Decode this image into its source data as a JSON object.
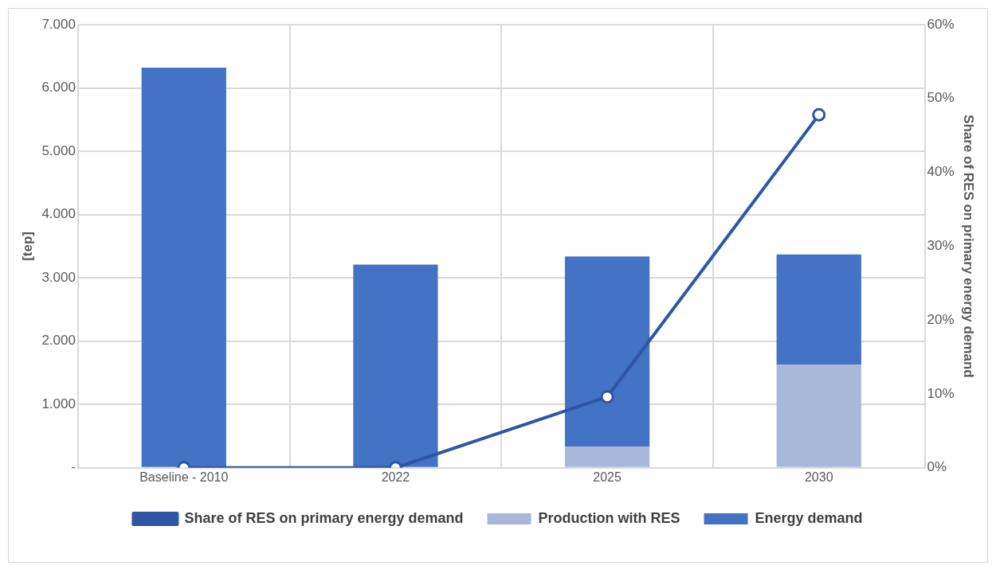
{
  "chart_data": {
    "type": "bar",
    "stacked": true,
    "ylabel": "[tep]",
    "y2label": "Share of RES on primary energy demand",
    "categories": [
      "Baseline - 2010",
      "2022",
      "2025",
      "2030"
    ],
    "series": [
      {
        "name": "Production with RES",
        "color": "#a9b7db",
        "values": [
          0,
          0,
          330,
          1630
        ]
      },
      {
        "name": "Energy demand",
        "color": "#4472c4",
        "values": [
          6320,
          3210,
          3010,
          1740
        ]
      },
      {
        "name": "Share of RES on primary energy demand",
        "type": "line",
        "axis": "y2",
        "color": "#2f55a4",
        "values": [
          0,
          0,
          9.6,
          47.8
        ]
      }
    ],
    "ylim": [
      0,
      7000
    ],
    "yticks": [
      {
        "value": 0,
        "label": "-"
      },
      {
        "value": 1000,
        "label": "1.000"
      },
      {
        "value": 2000,
        "label": "2.000"
      },
      {
        "value": 3000,
        "label": "3.000"
      },
      {
        "value": 4000,
        "label": "4.000"
      },
      {
        "value": 5000,
        "label": "5.000"
      },
      {
        "value": 6000,
        "label": "6.000"
      },
      {
        "value": 7000,
        "label": "7.000"
      }
    ],
    "y2lim": [
      0,
      60
    ],
    "y2ticks": [
      {
        "value": 0,
        "label": "0%"
      },
      {
        "value": 10,
        "label": "10%"
      },
      {
        "value": 20,
        "label": "20%"
      },
      {
        "value": 30,
        "label": "30%"
      },
      {
        "value": 40,
        "label": "40%"
      },
      {
        "value": 50,
        "label": "50%"
      },
      {
        "value": 60,
        "label": "60%"
      }
    ],
    "grid": true,
    "legend": "bottom",
    "marker": "circle"
  }
}
